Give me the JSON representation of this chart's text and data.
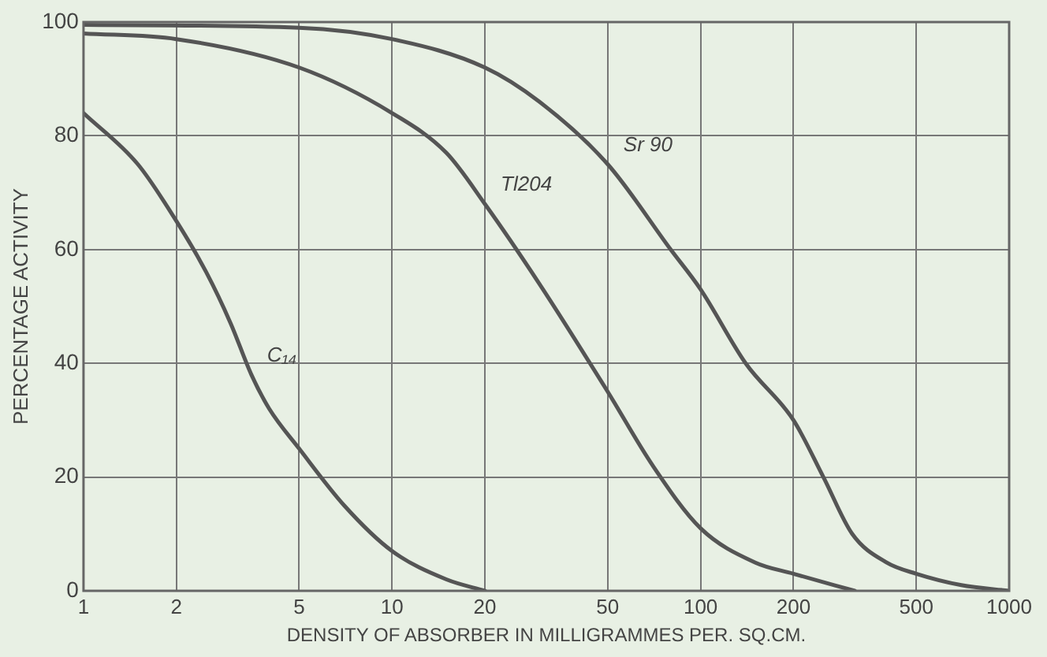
{
  "chart_data": {
    "type": "line",
    "xlabel": "DENSITY OF ABSORBER IN MILLIGRAMMES PER. SQ.CM.",
    "ylabel": "PERCENTAGE ACTIVITY",
    "log": "x",
    "grid": true,
    "legend": false,
    "marker": "none",
    "line_style": "solid",
    "xlim": [
      1,
      1000
    ],
    "xticks": [
      1,
      2,
      5,
      10,
      20,
      50,
      100,
      200,
      500,
      1000
    ],
    "ylim": [
      0,
      100
    ],
    "yticks": [
      0,
      20,
      40,
      60,
      80,
      100
    ],
    "series": [
      {
        "name": "C₁₄",
        "color": "#555555",
        "x": [
          1,
          1.5,
          2,
          2.5,
          3,
          3.5,
          4,
          5,
          7,
          10,
          15,
          20
        ],
        "values": [
          84,
          75,
          65,
          56,
          47,
          38,
          32,
          25,
          15,
          7,
          2,
          0
        ]
      },
      {
        "name": "Tl204",
        "color": "#555555",
        "x": [
          1,
          2,
          5,
          10,
          15,
          20,
          30,
          50,
          70,
          100,
          150,
          200,
          316
        ],
        "values": [
          98,
          97,
          92,
          84,
          77,
          68,
          54,
          35,
          22,
          11,
          5,
          3,
          0
        ]
      },
      {
        "name": "Sr 90",
        "color": "#555555",
        "x": [
          1,
          5,
          10,
          20,
          30,
          50,
          80,
          100,
          140,
          200,
          250,
          310,
          400,
          500,
          700,
          1000
        ],
        "values": [
          99.5,
          99,
          97,
          92,
          86,
          75,
          60,
          53,
          40,
          30,
          20,
          10,
          5,
          3,
          1,
          0
        ]
      }
    ]
  }
}
